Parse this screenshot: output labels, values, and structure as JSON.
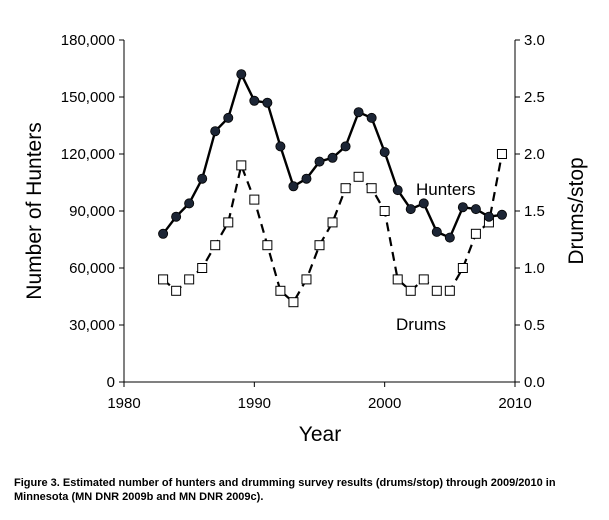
{
  "chart_data": {
    "type": "line",
    "xlim": [
      1980,
      2010
    ],
    "x_ticks": [
      1980,
      1990,
      2000,
      2010
    ],
    "xlabel": "Year",
    "left_axis": {
      "label": "Number of Hunters",
      "ylim": [
        0,
        180000
      ],
      "ticks": [
        "0",
        "30,000",
        "60,000",
        "90,000",
        "120,000",
        "150,000",
        "180,000"
      ]
    },
    "right_axis": {
      "label": "Drums/stop",
      "ylim": [
        0,
        3.0
      ],
      "ticks": [
        "0.0",
        "0.5",
        "1.0",
        "1.5",
        "2.0",
        "2.5",
        "3.0"
      ]
    },
    "series": [
      {
        "name": "Hunters",
        "axis": "left",
        "style": "solid line, filled dark circle markers",
        "x": [
          1983,
          1984,
          1985,
          1986,
          1987,
          1988,
          1989,
          1990,
          1991,
          1992,
          1993,
          1994,
          1995,
          1996,
          1997,
          1998,
          1999,
          2000,
          2001,
          2002,
          2003,
          2004,
          2005,
          2006,
          2007,
          2008,
          2009
        ],
        "y": [
          78000,
          87000,
          94000,
          107000,
          132000,
          139000,
          162000,
          148000,
          147000,
          124000,
          103000,
          107000,
          116000,
          118000,
          124000,
          142000,
          139000,
          121000,
          101000,
          91000,
          94000,
          79000,
          76000,
          92000,
          91000,
          87000,
          88000
        ]
      },
      {
        "name": "Drums",
        "axis": "right",
        "style": "dashed line, open square markers",
        "x": [
          1983,
          1984,
          1985,
          1986,
          1987,
          1988,
          1989,
          1990,
          1991,
          1992,
          1993,
          1994,
          1995,
          1996,
          1997,
          1998,
          1999,
          2000,
          2001,
          2002,
          2003,
          2004,
          2005,
          2006,
          2007,
          2008,
          2009
        ],
        "y": [
          0.9,
          0.8,
          0.9,
          1.0,
          1.2,
          1.4,
          1.9,
          1.6,
          1.2,
          0.8,
          0.7,
          0.9,
          1.2,
          1.4,
          1.7,
          1.8,
          1.7,
          1.5,
          0.9,
          0.8,
          0.9,
          0.8,
          0.8,
          1.0,
          1.3,
          1.4,
          2.0
        ]
      }
    ],
    "grid": false,
    "legend": "inline labels"
  },
  "caption": "Figure 3.  Estimated number of hunters and drumming survey results (drums/stop) through 2009/2010 in Minnesota (MN DNR 2009b and MN DNR 2009c).",
  "colors": {
    "hunters_marker": "#1c2535",
    "line": "#000000",
    "drums_marker_fill": "#ffffff"
  }
}
